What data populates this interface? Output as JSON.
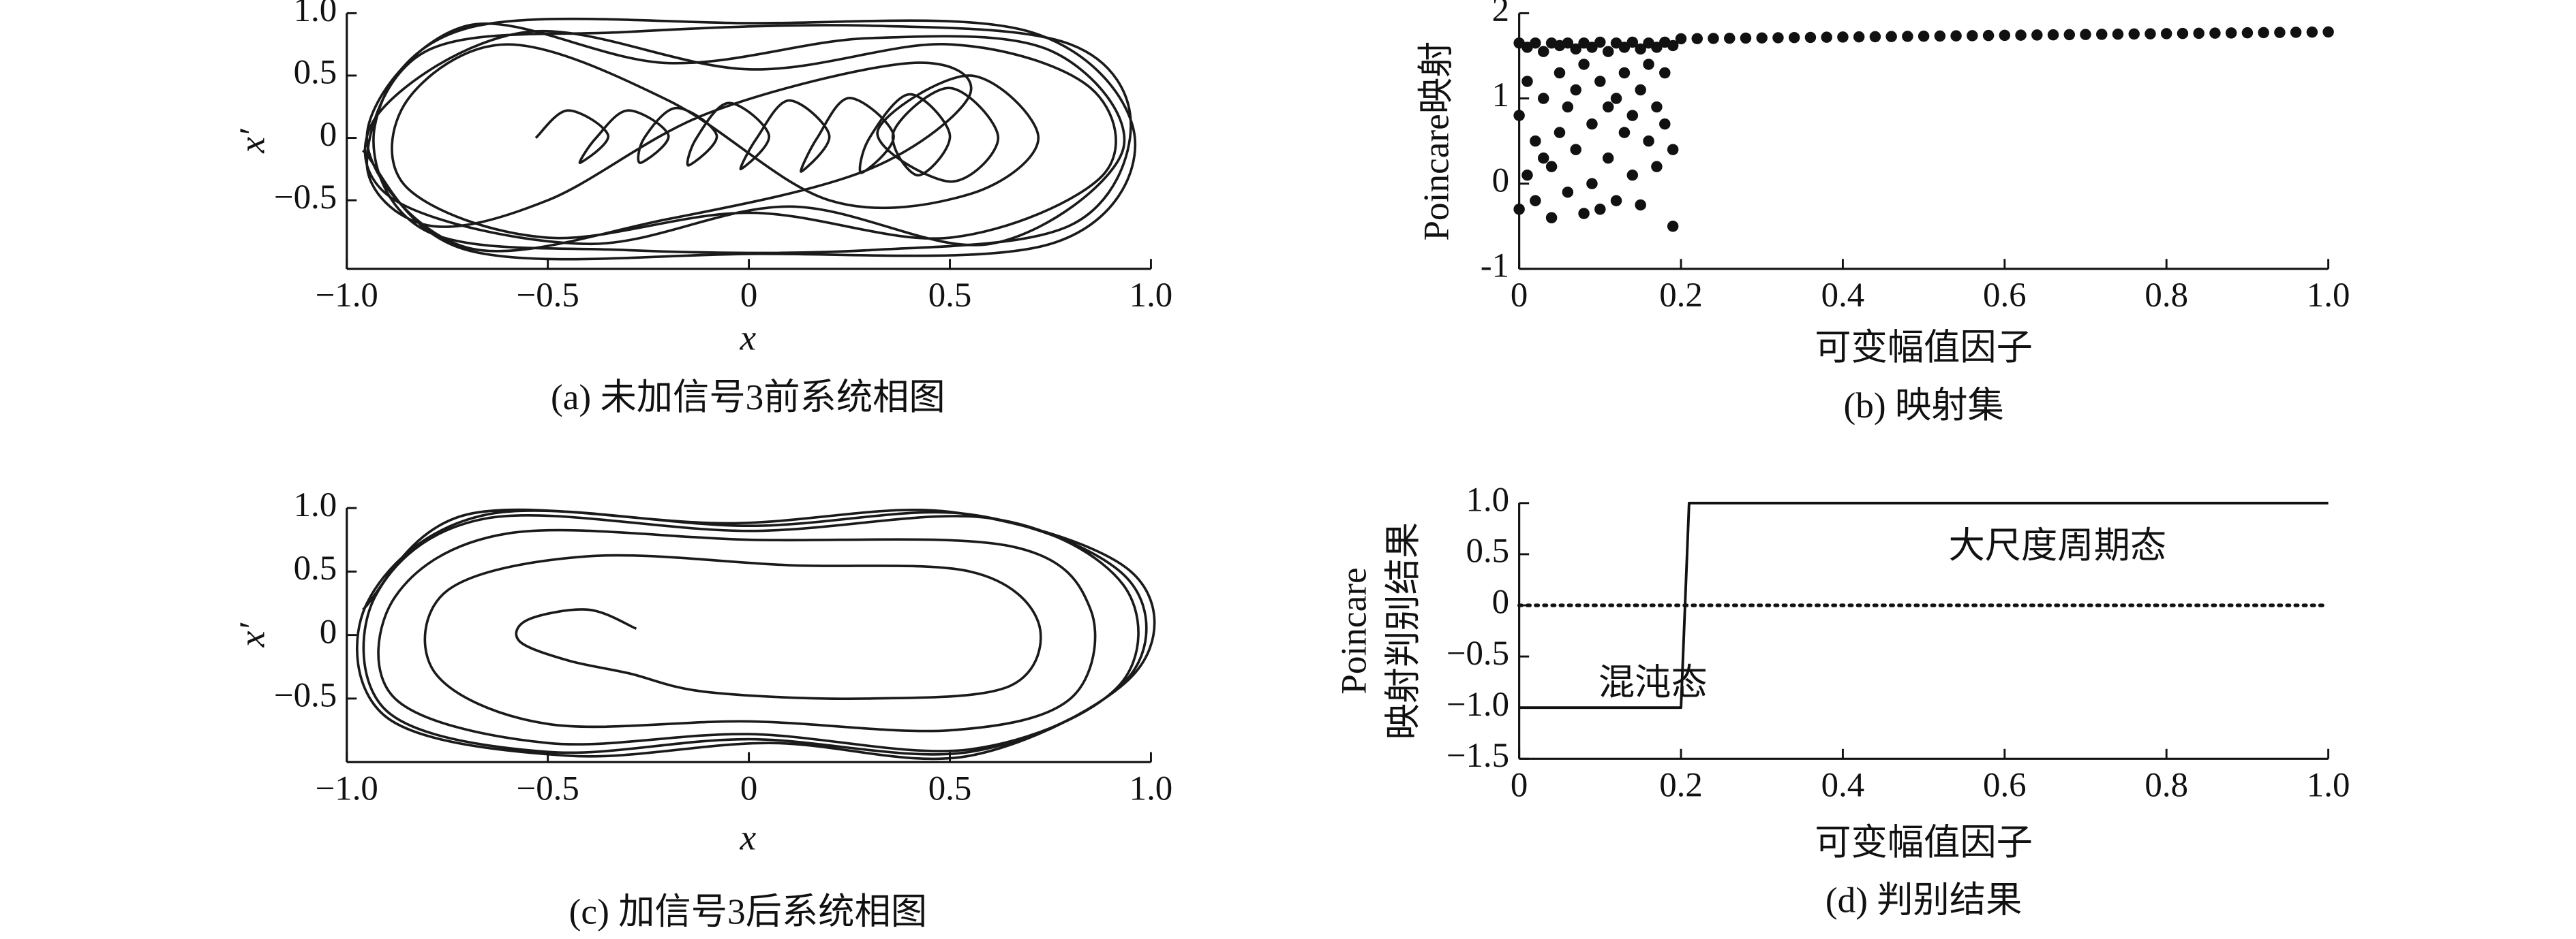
{
  "chart_data": [
    {
      "type": "line",
      "caption": "(a) 未加信号3前系统相图",
      "xlabel": "x",
      "ylabel": "x′",
      "xlim": [
        -1,
        1
      ],
      "ylim": [
        -1.05,
        1
      ],
      "xticks": [
        {
          "value": -1,
          "label": "−1.0"
        },
        {
          "value": -0.5,
          "label": "−0.5"
        },
        0,
        0.5,
        {
          "value": 1,
          "label": "1.0"
        }
      ],
      "yticks": [
        {
          "value": -0.5,
          "label": "−0.5"
        },
        0,
        0.5,
        {
          "value": 1,
          "label": "1.0"
        }
      ],
      "series": [
        {
          "color": "#1a1a1a",
          "smooth": true,
          "x": [
            -0.53,
            -0.45,
            -0.35,
            -0.42,
            -0.38,
            -0.3,
            -0.2,
            -0.27,
            -0.26,
            -0.18,
            -0.08,
            -0.15,
            -0.13,
            -0.05,
            0.05,
            -0.02,
            0.02,
            0.1,
            0.2,
            0.13,
            0.17,
            0.25,
            0.36,
            0.28,
            0.3,
            0.4,
            0.5,
            0.42,
            0.36,
            0.5,
            0.62,
            0.5,
            0.32,
            0.55,
            0.72,
            0.55,
            0.2,
            -0.2,
            -0.6,
            -0.85,
            -0.85,
            -0.5,
            0.0,
            0.5,
            0.88,
            0.85,
            0.5,
            0,
            -0.55,
            -0.92,
            -0.88,
            -0.4,
            0.1,
            0.6,
            0.93,
            0.75,
            0.3,
            -0.2,
            -0.7,
            -0.95,
            -0.7,
            -0.2,
            0.3,
            0.55,
            0.4,
            -0.1,
            -0.5,
            -0.8,
            -0.95,
            -0.8,
            -0.3,
            0.3,
            0.8,
            0.95,
            0.8,
            0.3,
            -0.3,
            -0.8,
            -0.93,
            -0.7,
            0,
            0.7,
            0.96,
            0.75,
            0,
            -0.7,
            -0.96
          ],
          "values": [
            0,
            0.22,
            0.02,
            -0.2,
            0,
            0.22,
            0.02,
            -0.2,
            0,
            0.24,
            0.02,
            -0.22,
            0,
            0.28,
            0.02,
            -0.25,
            0,
            0.3,
            0.02,
            -0.27,
            0,
            0.32,
            0.02,
            -0.28,
            0,
            0.35,
            0.02,
            -0.3,
            0.05,
            0.4,
            0,
            -0.35,
            0.05,
            0.5,
            0,
            -0.45,
            -0.5,
            0.3,
            0.75,
            0.3,
            -0.4,
            -0.8,
            -0.6,
            -0.8,
            -0.3,
            0.4,
            0.75,
            0.55,
            0.85,
            0.2,
            -0.5,
            -0.85,
            -0.55,
            -0.85,
            -0.1,
            0.7,
            0.8,
            0.6,
            0.9,
            0,
            -0.88,
            -0.65,
            -0.25,
            0.35,
            0.6,
            0.2,
            -0.5,
            -0.7,
            -0.2,
            0.7,
            0.85,
            0.9,
            0.75,
            0.1,
            -0.7,
            -0.9,
            -0.9,
            -0.75,
            0.1,
            0.88,
            0.92,
            0.85,
            0,
            -0.85,
            -0.93,
            -0.9,
            -0.1
          ]
        }
      ]
    },
    {
      "type": "scatter",
      "caption": "(b) 映射集",
      "xlabel": "可变幅值因子",
      "ylabel": "Poincare映射",
      "xlim": [
        0,
        1
      ],
      "ylim": [
        -1,
        2
      ],
      "xticks": [
        0,
        0.2,
        0.4,
        0.6,
        0.8,
        {
          "value": 1,
          "label": "1.0"
        }
      ],
      "yticks": [
        -1,
        0,
        1,
        2
      ],
      "series": [
        {
          "color": "#111111",
          "x": [
            0,
            0,
            0,
            0.01,
            0.01,
            0.01,
            0.02,
            0.02,
            0.02,
            0.03,
            0.03,
            0.03,
            0.04,
            0.04,
            0.04,
            0.05,
            0.05,
            0.05,
            0.06,
            0.06,
            0.06,
            0.07,
            0.07,
            0.07,
            0.08,
            0.08,
            0.08,
            0.09,
            0.09,
            0.09,
            0.1,
            0.1,
            0.1,
            0.11,
            0.11,
            0.11,
            0.12,
            0.12,
            0.12,
            0.13,
            0.13,
            0.13,
            0.14,
            0.14,
            0.14,
            0.15,
            0.15,
            0.15,
            0.16,
            0.16,
            0.16,
            0.17,
            0.17,
            0.17,
            0.18,
            0.18,
            0.18,
            0.19,
            0.19,
            0.19,
            0.2,
            0.22,
            0.24,
            0.26,
            0.28,
            0.3,
            0.32,
            0.34,
            0.36,
            0.38,
            0.4,
            0.42,
            0.44,
            0.46,
            0.48,
            0.5,
            0.52,
            0.54,
            0.56,
            0.58,
            0.6,
            0.62,
            0.64,
            0.66,
            0.68,
            0.7,
            0.72,
            0.74,
            0.76,
            0.78,
            0.8,
            0.82,
            0.84,
            0.86,
            0.88,
            0.9,
            0.92,
            0.94,
            0.96,
            0.98,
            1.0
          ],
          "values": [
            1.65,
            0.8,
            -0.3,
            1.6,
            1.2,
            0.1,
            1.65,
            0.5,
            -0.2,
            1.55,
            1.0,
            0.3,
            1.65,
            0.2,
            -0.4,
            1.62,
            1.3,
            0.6,
            1.65,
            0.9,
            -0.1,
            1.58,
            0.4,
            1.1,
            1.65,
            1.4,
            -0.35,
            1.6,
            0.7,
            0.0,
            1.66,
            1.2,
            -0.3,
            1.55,
            0.3,
            0.9,
            1.65,
            1.0,
            -0.2,
            1.6,
            0.6,
            1.3,
            1.66,
            0.1,
            0.8,
            1.58,
            1.1,
            -0.25,
            1.65,
            0.5,
            1.4,
            1.6,
            0.9,
            0.2,
            1.66,
            1.3,
            0.7,
            1.62,
            0.4,
            -0.5,
            1.7,
            1.702,
            1.704,
            1.706,
            1.708,
            1.71,
            1.712,
            1.714,
            1.716,
            1.718,
            1.72,
            1.722,
            1.724,
            1.726,
            1.728,
            1.73,
            1.732,
            1.734,
            1.736,
            1.738,
            1.74,
            1.742,
            1.744,
            1.746,
            1.748,
            1.75,
            1.752,
            1.754,
            1.756,
            1.758,
            1.76,
            1.762,
            1.764,
            1.766,
            1.768,
            1.77,
            1.772,
            1.774,
            1.776,
            1.778,
            1.78
          ]
        }
      ]
    },
    {
      "type": "line",
      "caption": "(c) 加信号3后系统相图",
      "xlabel": "x",
      "ylabel": "x′",
      "xlim": [
        -1,
        1
      ],
      "ylim": [
        -1,
        1
      ],
      "xticks": [
        {
          "value": -1,
          "label": "−1.0"
        },
        {
          "value": -0.5,
          "label": "−0.5"
        },
        0,
        0.5,
        {
          "value": 1,
          "label": "1.0"
        }
      ],
      "yticks": [
        {
          "value": -0.5,
          "label": "−0.5"
        },
        0,
        0.5,
        {
          "value": 1,
          "label": "1.0"
        }
      ],
      "series": [
        {
          "color": "#1a1a1a",
          "smooth": true,
          "x": [
            -0.28,
            -0.4,
            -0.55,
            -0.57,
            -0.45,
            -0.3,
            -0.1,
            0.3,
            0.65,
            0.72,
            0.55,
            0.1,
            -0.4,
            -0.75,
            -0.78,
            -0.5,
            0,
            0.5,
            0.8,
            0.85,
            0.65,
            0,
            -0.6,
            -0.88,
            -0.88,
            -0.5,
            0,
            0.55,
            0.92,
            0.93,
            0.6,
            0,
            -0.65,
            -0.93,
            -0.9,
            -0.5,
            0,
            0.55,
            0.94,
            0.94,
            0.55,
            0,
            -0.65,
            -0.95,
            -0.9,
            -0.45,
            0.05,
            0.55,
            0.96,
            0.95,
            0.5,
            -0.05,
            -0.7,
            -0.96
          ],
          "values": [
            0.05,
            0.2,
            0.12,
            -0.05,
            -0.2,
            -0.3,
            -0.45,
            -0.5,
            -0.4,
            0.1,
            0.5,
            0.55,
            0.62,
            0.35,
            -0.3,
            -0.7,
            -0.68,
            -0.75,
            -0.5,
            0.2,
            0.7,
            0.75,
            0.8,
            0.3,
            -0.5,
            -0.85,
            -0.78,
            -0.9,
            -0.4,
            0.4,
            0.92,
            0.82,
            0.92,
            0.3,
            -0.6,
            -0.92,
            -0.82,
            -0.92,
            -0.35,
            0.45,
            0.95,
            0.86,
            0.95,
            0.25,
            -0.65,
            -0.95,
            -0.85,
            -0.95,
            -0.3,
            0.5,
            0.97,
            0.88,
            0.95,
            0.2
          ]
        }
      ]
    },
    {
      "type": "line",
      "caption": "(d) 判别结果",
      "xlabel": "可变幅值因子",
      "ylabel": [
        "Poincare",
        "映射判别结果"
      ],
      "annotations": [
        "大尺度周期态",
        "混沌态"
      ],
      "xlim": [
        0,
        1
      ],
      "ylim": [
        -1.5,
        1
      ],
      "xticks": [
        0,
        0.2,
        0.4,
        0.6,
        0.8,
        {
          "value": 1,
          "label": "1.0"
        }
      ],
      "yticks": [
        {
          "value": -1.5,
          "label": "−1.5"
        },
        {
          "value": -1,
          "label": "−1.0"
        },
        {
          "value": -0.5,
          "label": "−0.5"
        },
        0,
        0.5,
        {
          "value": 1,
          "label": "1.0"
        }
      ],
      "series": [
        {
          "color": "#111111",
          "x": [
            0,
            0.2,
            0.21,
            1
          ],
          "values": [
            -1,
            -1,
            1,
            1
          ]
        },
        {
          "color": "#111111",
          "linestyle": "dotted",
          "x": [
            0,
            1
          ],
          "values": [
            0,
            0
          ]
        }
      ]
    }
  ]
}
